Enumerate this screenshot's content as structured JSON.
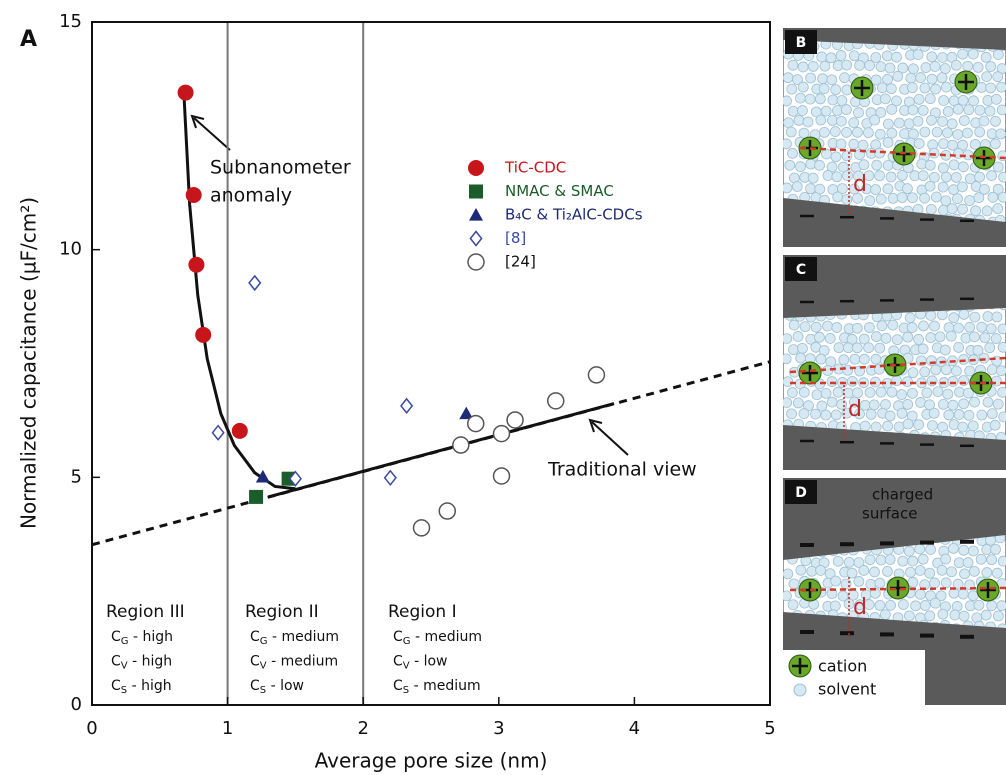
{
  "chart_data": {
    "type": "scatter",
    "panel_label": "A",
    "xlabel": "Average pore size (nm)",
    "ylabel": "Normalized capacitance (µF/cm²)",
    "xlim": [
      0,
      5
    ],
    "ylim": [
      0,
      15
    ],
    "xticks": [
      0,
      1,
      2,
      3,
      4,
      5
    ],
    "yticks": [
      0,
      5,
      10,
      15
    ],
    "region_bounds": [
      1,
      2
    ],
    "series": [
      {
        "name": "TiC-CDC",
        "color": "#c8151b",
        "marker": "circle",
        "x": [
          0.69,
          0.75,
          0.77,
          0.82,
          1.09
        ],
        "values": [
          13.45,
          11.2,
          9.67,
          8.13,
          6.02
        ]
      },
      {
        "name": "NMAC  & SMAC",
        "color": "#1a5c2a",
        "marker": "square",
        "x": [
          1.21,
          1.45
        ],
        "values": [
          4.57,
          4.97
        ]
      },
      {
        "name": "B₄C & Ti₂AlC-CDCs",
        "color": "#1c2a78",
        "marker": "triangle",
        "x": [
          1.26,
          2.76
        ],
        "values": [
          5.01,
          6.4
        ]
      },
      {
        "name": "[8]",
        "color": "#3a4aa0",
        "marker": "diamond",
        "x": [
          1.2,
          0.93,
          1.5,
          2.32,
          2.2
        ],
        "values": [
          9.27,
          5.98,
          4.97,
          6.57,
          4.99
        ]
      },
      {
        "name": "[24]",
        "color": "#111111",
        "marker": "open-circle",
        "x": [
          2.43,
          2.62,
          2.72,
          2.83,
          3.02,
          3.12,
          3.02,
          3.42,
          3.72
        ],
        "values": [
          3.89,
          4.26,
          5.71,
          6.18,
          5.96,
          6.26,
          5.03,
          6.68,
          7.25
        ]
      }
    ],
    "curves": [
      {
        "style": "solid",
        "x": [
          0.68,
          0.72,
          0.78,
          0.85,
          0.95,
          1.05,
          1.2,
          1.35,
          1.5
        ],
        "values": [
          13.3,
          11,
          9,
          7.6,
          6.4,
          5.7,
          5.1,
          4.8,
          4.75
        ]
      },
      {
        "style": "dashed",
        "x": [
          0,
          5
        ],
        "values": [
          3.52,
          7.54
        ]
      },
      {
        "style": "solid",
        "x": [
          1.3,
          3.85
        ],
        "values": [
          4.57,
          6.62
        ]
      }
    ],
    "annotations": [
      [
        "Subnanometer",
        "anomaly"
      ],
      [
        "Traditional view"
      ]
    ],
    "regions": [
      {
        "title": "Region III",
        "rows": [
          [
            "C",
            "G",
            " - high"
          ],
          [
            "C",
            "V",
            " - high"
          ],
          [
            "C",
            "S",
            " - high"
          ]
        ]
      },
      {
        "title": "Region II",
        "rows": [
          [
            "C",
            "G",
            " - medium"
          ],
          [
            "C",
            "V",
            " - medium"
          ],
          [
            "C",
            "S",
            " - low"
          ]
        ]
      },
      {
        "title": "Region I",
        "rows": [
          [
            "C",
            "G",
            " - medium"
          ],
          [
            "C",
            "V",
            " - low"
          ],
          [
            "C",
            "S",
            " - medium"
          ]
        ]
      }
    ]
  },
  "panels": [
    {
      "label": "B",
      "gap": "d"
    },
    {
      "label": "C",
      "gap": "d"
    },
    {
      "label": "D",
      "gap": "d",
      "surface": [
        "charged",
        "surface"
      ]
    }
  ],
  "panel_legend": [
    "cation",
    "solvent"
  ]
}
